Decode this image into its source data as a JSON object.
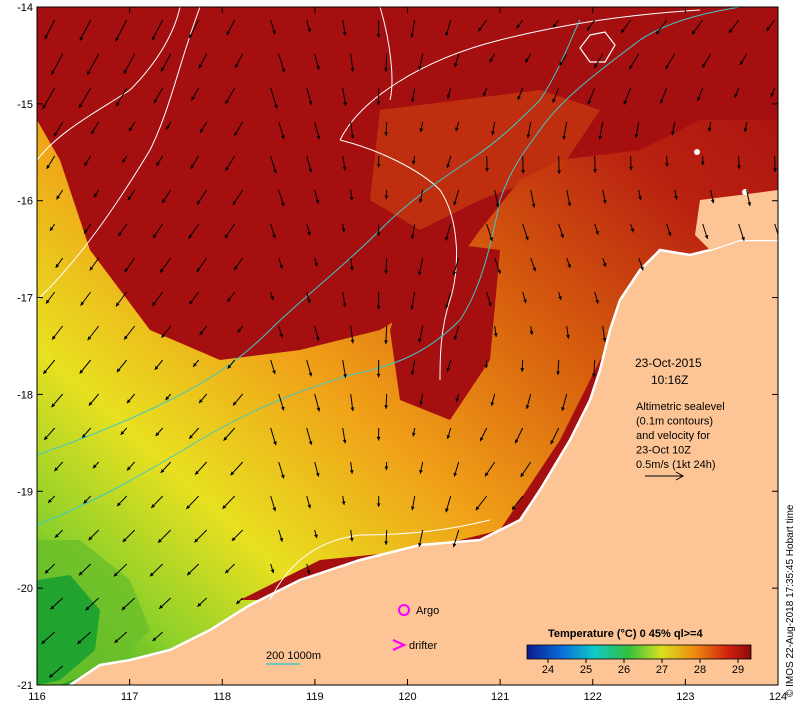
{
  "date_label": "23-Oct-2015",
  "time_label": "10:16Z",
  "info_lines": [
    "Altimetric sealevel",
    "(0.1m contours)",
    "and velocity for",
    "23-Oct 10Z",
    "0.5m/s (1kt 24h)"
  ],
  "legend": {
    "argo_label": "Argo",
    "drifter_label": "drifter",
    "depth_label": "200  1000m"
  },
  "colorbar": {
    "title": "Temperature (°C) 0 45% ql>=4",
    "ticks": [
      "24",
      "25",
      "26",
      "27",
      "28",
      "29"
    ]
  },
  "credit": "© IMOS 22-Aug-2018 17:35:45 Hobart time",
  "colors": {
    "land": "#fdc596",
    "warm": "#a50f0f",
    "coastline": "#ffffff",
    "isobath": "#40c8c8",
    "argo": "#ff00ff"
  },
  "axes": {
    "x_ticks": [
      "116",
      "117",
      "118",
      "119",
      "120",
      "121",
      "122",
      "123",
      "124"
    ],
    "y_ticks": [
      "-14",
      "-15",
      "-16",
      "-17",
      "-18",
      "-19",
      "-20",
      "-21"
    ]
  }
}
